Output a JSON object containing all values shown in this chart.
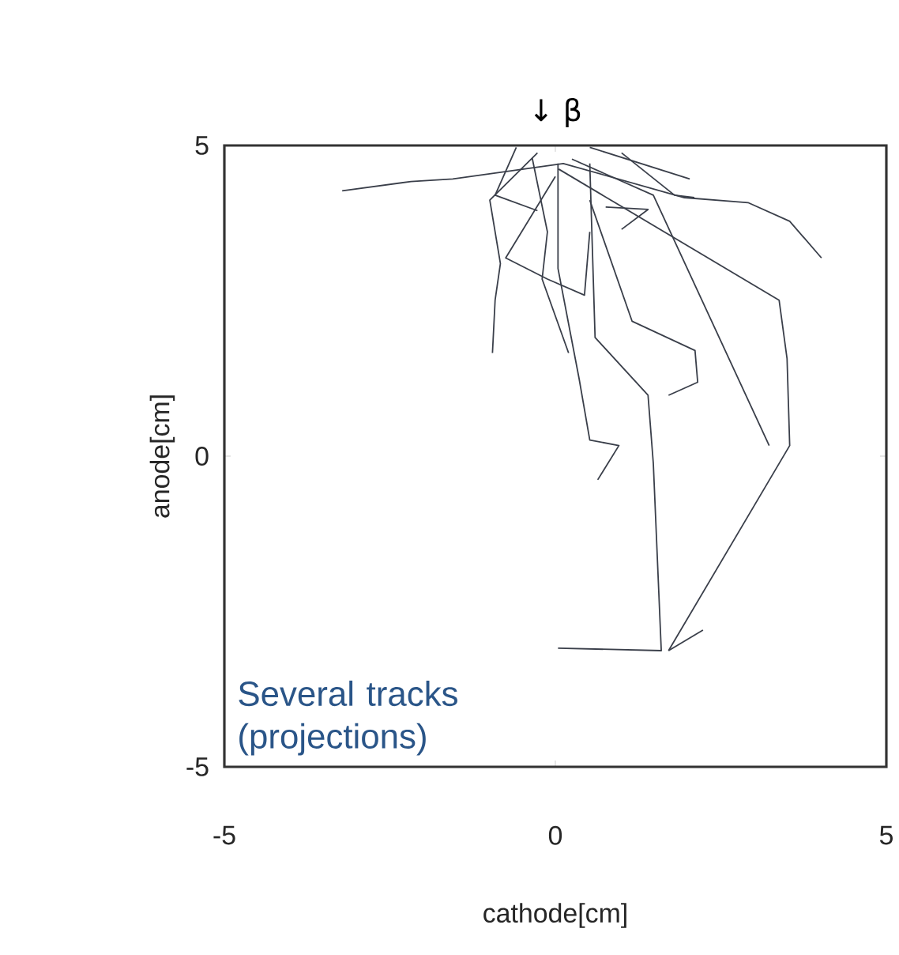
{
  "chart_data": {
    "type": "line",
    "xlabel": "cathode[cm]",
    "ylabel": "anode[cm]",
    "xlim": [
      -5,
      5
    ],
    "ylim": [
      -5,
      5
    ],
    "xticks": [
      -5,
      0,
      5
    ],
    "yticks": [
      -5,
      0,
      5
    ],
    "grid": false,
    "marker": "none",
    "line_style": "solid",
    "annotations": [
      "↓ β",
      "Several tracks (projections)"
    ],
    "series": [
      {
        "color": "#3a3f4a",
        "x": [
          -3.22,
          -2.18,
          -1.55,
          0.12,
          1.95,
          2.91,
          3.54,
          4.02
        ],
        "values": [
          4.27,
          4.42,
          4.46,
          4.71,
          4.16,
          4.08,
          3.78,
          3.19
        ]
      },
      {
        "color": "#3a3f4a",
        "x": [
          0.05,
          3.38,
          3.5,
          3.54,
          1.71
        ],
        "values": [
          4.62,
          2.51,
          1.57,
          0.17,
          -3.13
        ]
      },
      {
        "color": "#3a3f4a",
        "x": [
          0.52,
          0.6,
          1.4,
          1.48,
          1.6,
          0.04
        ],
        "values": [
          4.71,
          1.91,
          0.98,
          -0.12,
          -3.13,
          -3.09
        ]
      },
      {
        "color": "#3a3f4a",
        "x": [
          1.71,
          2.23
        ],
        "values": [
          -3.13,
          -2.8
        ]
      },
      {
        "color": "#3a3f4a",
        "x": [
          0.25,
          1.48,
          3.23
        ],
        "values": [
          4.78,
          4.2,
          0.17
        ]
      },
      {
        "color": "#3a3f4a",
        "x": [
          0.52,
          1.16,
          2.11,
          2.15,
          1.71
        ],
        "values": [
          4.12,
          2.17,
          1.7,
          1.19,
          0.98
        ]
      },
      {
        "color": "#3a3f4a",
        "x": [
          0.04,
          0.04,
          0.36,
          0.52,
          0.96,
          0.64
        ],
        "values": [
          4.71,
          3.02,
          1.24,
          0.26,
          0.17,
          -0.38
        ]
      },
      {
        "color": "#3a3f4a",
        "x": [
          -0.27,
          -0.99,
          -0.83,
          -0.91,
          -0.95
        ],
        "values": [
          4.88,
          4.12,
          3.1,
          2.51,
          1.66
        ]
      },
      {
        "color": "#3a3f4a",
        "x": [
          0.0,
          -0.75,
          -0.12,
          0.44,
          0.52
        ],
        "values": [
          4.5,
          3.19,
          2.85,
          2.59,
          3.61
        ]
      },
      {
        "color": "#3a3f4a",
        "x": [
          -0.35,
          -0.12,
          -0.2,
          0.2
        ],
        "values": [
          4.8,
          3.61,
          2.85,
          1.66
        ]
      },
      {
        "color": "#3a3f4a",
        "x": [
          0.76,
          1.4,
          1.0
        ],
        "values": [
          4.01,
          3.97,
          3.65
        ]
      },
      {
        "color": "#3a3f4a",
        "x": [
          -0.59,
          -0.91,
          -0.27
        ],
        "values": [
          4.97,
          4.2,
          3.95
        ]
      },
      {
        "color": "#3a3f4a",
        "x": [
          0.52,
          2.03
        ],
        "values": [
          4.97,
          4.46
        ]
      },
      {
        "color": "#3a3f4a",
        "x": [
          1.0,
          1.8,
          2.1
        ],
        "values": [
          4.88,
          4.2,
          4.16
        ]
      }
    ]
  }
}
